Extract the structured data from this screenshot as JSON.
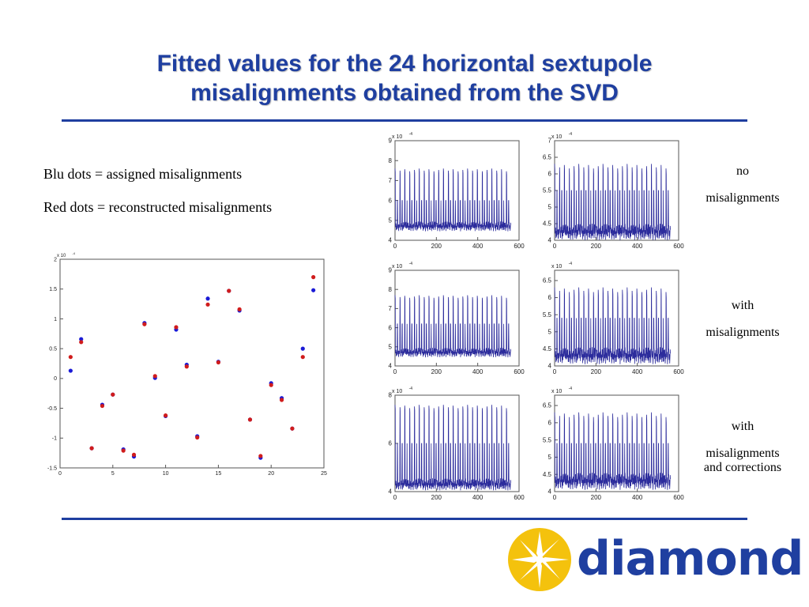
{
  "slide": {
    "title_line1": "Fitted values for the 24 horizontal sextupole",
    "title_line2": "misalignments obtained from the SVD",
    "legend_blue": "Blu dots = assigned misalignments",
    "legend_red": "Red dots = reconstructed misalignments",
    "accent_color": "#1f3fa0",
    "logo": {
      "text": "diamond",
      "icon": "diamond-star-logo-icon",
      "sun_color": "#f4c20d"
    }
  },
  "conditions": [
    {
      "line1": "no",
      "line2": "misalignments",
      "line3": ""
    },
    {
      "line1": "with",
      "line2": "misalignments",
      "line3": ""
    },
    {
      "line1": "with",
      "line2": "misalignments",
      "line3": "and corrections"
    }
  ],
  "chart_data": [
    {
      "type": "scatter",
      "title": "",
      "xlabel": "",
      "ylabel": "",
      "exponent_label": "x 10",
      "exponent": "-4",
      "xlim": [
        0,
        25
      ],
      "ylim": [
        -1.5,
        2
      ],
      "xticks": [
        0,
        5,
        10,
        15,
        20,
        25
      ],
      "yticks": [
        -1.5,
        -1,
        -0.5,
        0,
        0.5,
        1,
        1.5,
        2
      ],
      "xtick_labels": [
        "0",
        "5",
        "10",
        "15",
        "20",
        "25"
      ],
      "ytick_labels": [
        "-1.5",
        "-1",
        "-0.5",
        "0",
        "0.5",
        "1",
        "1.5",
        "2"
      ],
      "grid": false,
      "series": [
        {
          "color": "#1a1ad6",
          "x": [
            1,
            2,
            3,
            4,
            5,
            6,
            7,
            8,
            9,
            10,
            11,
            12,
            13,
            14,
            15,
            16,
            17,
            18,
            19,
            20,
            21,
            22,
            23,
            24
          ],
          "values": [
            0.13,
            0.66,
            -1.17,
            -0.44,
            -0.27,
            -1.19,
            -1.31,
            0.93,
            0.01,
            -0.63,
            0.82,
            0.23,
            -0.97,
            1.34,
            0.28,
            1.47,
            1.14,
            -0.69,
            -1.33,
            -0.08,
            -0.33,
            -0.84,
            0.5,
            1.48
          ]
        },
        {
          "color": "#d01c1c",
          "x": [
            1,
            2,
            3,
            4,
            5,
            6,
            7,
            8,
            9,
            10,
            11,
            12,
            13,
            14,
            15,
            16,
            17,
            18,
            19,
            20,
            21,
            22,
            23,
            24
          ],
          "values": [
            0.36,
            0.61,
            -1.17,
            -0.46,
            -0.27,
            -1.21,
            -1.28,
            0.91,
            0.04,
            -0.62,
            0.86,
            0.2,
            -0.99,
            1.24,
            0.27,
            1.47,
            1.16,
            -0.69,
            -1.3,
            -0.11,
            -0.36,
            -0.84,
            0.36,
            1.7
          ]
        }
      ]
    },
    {
      "type": "line",
      "title": "",
      "exponent_label": "x 10",
      "exponent": "-4",
      "xlim": [
        0,
        600
      ],
      "ylim": [
        4,
        9
      ],
      "xticks": [
        0,
        200,
        400,
        600
      ],
      "yticks": [
        4,
        5,
        6,
        7,
        8,
        9
      ],
      "xtick_labels": [
        "0",
        "200",
        "400",
        "600"
      ],
      "ytick_labels": [
        "4",
        "5",
        "6",
        "7",
        "8",
        "9"
      ],
      "period": 23.4,
      "n": 560,
      "base": 4.7,
      "peak": 7.6,
      "sub_peak": 6.0,
      "color": "#2c2c9c"
    },
    {
      "type": "line",
      "title": "",
      "exponent_label": "x 10",
      "exponent": "-4",
      "xlim": [
        0,
        600
      ],
      "ylim": [
        4,
        7
      ],
      "xticks": [
        0,
        200,
        400,
        600
      ],
      "yticks": [
        4,
        4.5,
        5,
        5.5,
        6,
        6.5,
        7
      ],
      "xtick_labels": [
        "0",
        "200",
        "400",
        "600"
      ],
      "ytick_labels": [
        "4",
        "4.5",
        "5",
        "5.5",
        "6",
        "6.5",
        "7"
      ],
      "period": 23.4,
      "n": 560,
      "base": 4.25,
      "peak": 6.3,
      "sub_peak": 5.5,
      "color": "#2c2c9c"
    },
    {
      "type": "line",
      "title": "",
      "exponent_label": "x 10",
      "exponent": "-4",
      "xlim": [
        0,
        600
      ],
      "ylim": [
        4,
        9
      ],
      "xticks": [
        0,
        200,
        400,
        600
      ],
      "yticks": [
        4,
        5,
        6,
        7,
        8,
        9
      ],
      "xtick_labels": [
        "0",
        "200",
        "400",
        "600"
      ],
      "ytick_labels": [
        "4",
        "5",
        "6",
        "7",
        "8",
        "9"
      ],
      "period": 23.4,
      "n": 560,
      "base": 4.7,
      "peak": 7.7,
      "sub_peak": 6.2,
      "color": "#2c2c9c"
    },
    {
      "type": "line",
      "title": "",
      "exponent_label": "x 10",
      "exponent": "-4",
      "xlim": [
        0,
        600
      ],
      "ylim": [
        4,
        6.8
      ],
      "xticks": [
        0,
        200,
        400,
        600
      ],
      "yticks": [
        4,
        4.5,
        5,
        5.5,
        6,
        6.5
      ],
      "xtick_labels": [
        "0",
        "200",
        "400",
        "600"
      ],
      "ytick_labels": [
        "4",
        "4.5",
        "5",
        "5.5",
        "6",
        "6.5"
      ],
      "period": 23.4,
      "n": 560,
      "base": 4.3,
      "peak": 6.3,
      "sub_peak": 5.4,
      "color": "#2c2c9c"
    },
    {
      "type": "line",
      "title": "",
      "exponent_label": "x 10",
      "exponent": "-4",
      "xlim": [
        0,
        600
      ],
      "ylim": [
        4,
        8
      ],
      "xticks": [
        0,
        200,
        400,
        600
      ],
      "yticks": [
        4,
        6,
        8
      ],
      "xtick_labels": [
        "0",
        "200",
        "400",
        "600"
      ],
      "ytick_labels": [
        "4",
        "6",
        "8"
      ],
      "period": 23.4,
      "n": 560,
      "base": 4.3,
      "peak": 7.6,
      "sub_peak": 6.0,
      "color": "#2c2c9c"
    },
    {
      "type": "line",
      "title": "",
      "exponent_label": "x 10",
      "exponent": "-4",
      "xlim": [
        0,
        600
      ],
      "ylim": [
        4,
        6.8
      ],
      "xticks": [
        0,
        200,
        400,
        600
      ],
      "yticks": [
        4,
        4.5,
        5,
        5.5,
        6,
        6.5
      ],
      "xtick_labels": [
        "0",
        "200",
        "400",
        "600"
      ],
      "ytick_labels": [
        "4",
        "4.5",
        "5",
        "5.5",
        "6",
        "6.5"
      ],
      "period": 23.4,
      "n": 560,
      "base": 4.3,
      "peak": 6.3,
      "sub_peak": 5.4,
      "color": "#2c2c9c"
    }
  ]
}
